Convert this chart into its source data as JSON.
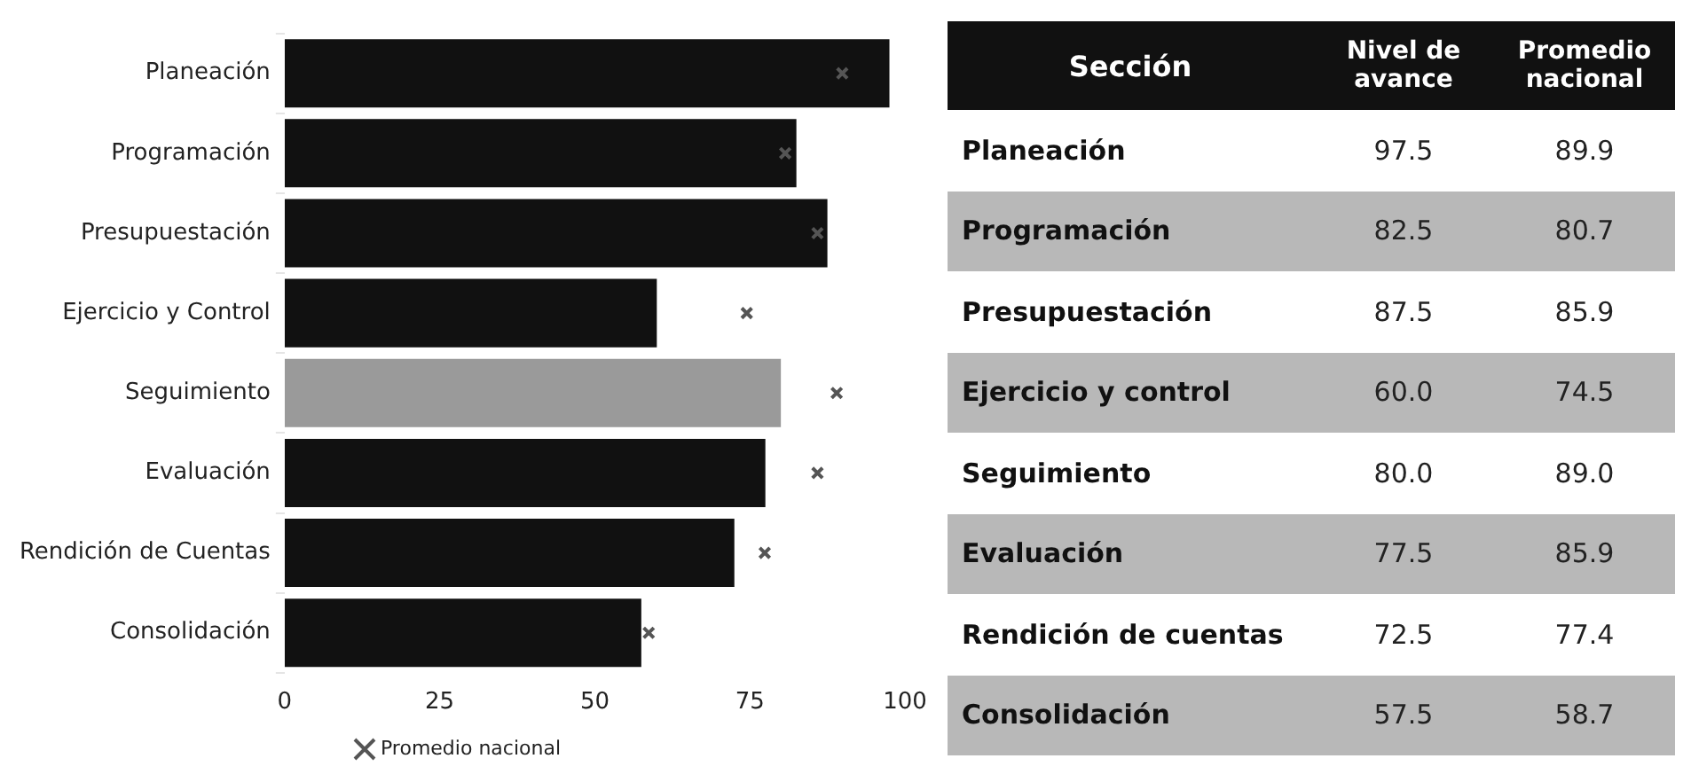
{
  "chart_data": [
    {
      "type": "bar",
      "orientation": "horizontal",
      "categories": [
        "Planeación",
        "Programación",
        "Presupuestación",
        "Ejercicio y Control",
        "Seguimiento",
        "Evaluación",
        "Rendición de Cuentas",
        "Consolidación"
      ],
      "series": [
        {
          "type": "bar",
          "colors": [
            "#111111",
            "#111111",
            "#111111",
            "#111111",
            "#9a9a9a",
            "#111111",
            "#111111",
            "#111111"
          ],
          "values": [
            97.5,
            82.5,
            87.5,
            60.0,
            80.0,
            77.5,
            72.5,
            57.5
          ]
        },
        {
          "type": "scatter",
          "name": "Promedio nacional",
          "color": "#555555",
          "values": [
            89.9,
            80.7,
            85.9,
            74.5,
            89.0,
            85.9,
            77.4,
            58.7
          ]
        }
      ],
      "xlim": [
        0,
        100
      ],
      "xticks": [
        0,
        25,
        50,
        75,
        100
      ],
      "grid": false,
      "legend": "bottom",
      "marker": "cross"
    },
    {
      "type": "other",
      "annotations": [
        "Sección",
        "Nivel de avance",
        "Promedio nacional",
        "Planeación",
        "97.5",
        "89.9",
        "Programación",
        "82.5",
        "80.7",
        "Presupuestación",
        "87.5",
        "85.9",
        "Ejercicio y control",
        "60.0",
        "74.5",
        "Seguimiento",
        "80.0",
        "89.0",
        "Evaluación",
        "77.5",
        "85.9",
        "Rendición de cuentas",
        "72.5",
        "77.4",
        "Consolidación",
        "57.5",
        "58.7"
      ]
    }
  ]
}
